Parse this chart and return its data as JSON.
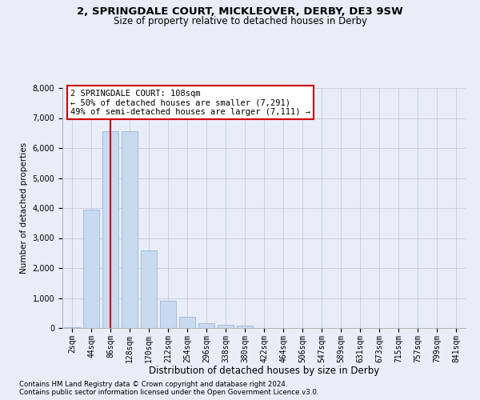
{
  "title_line1": "2, SPRINGDALE COURT, MICKLEOVER, DERBY, DE3 9SW",
  "title_line2": "Size of property relative to detached houses in Derby",
  "xlabel": "Distribution of detached houses by size in Derby",
  "ylabel": "Number of detached properties",
  "footer_line1": "Contains HM Land Registry data © Crown copyright and database right 2024.",
  "footer_line2": "Contains public sector information licensed under the Open Government Licence v3.0.",
  "annotation_line1": "2 SPRINGDALE COURT: 108sqm",
  "annotation_line2": "← 50% of detached houses are smaller (7,291)",
  "annotation_line3": "49% of semi-detached houses are larger (7,111) →",
  "bar_labels": [
    "2sqm",
    "44sqm",
    "86sqm",
    "128sqm",
    "170sqm",
    "212sqm",
    "254sqm",
    "296sqm",
    "338sqm",
    "380sqm",
    "422sqm",
    "464sqm",
    "506sqm",
    "547sqm",
    "589sqm",
    "631sqm",
    "673sqm",
    "715sqm",
    "757sqm",
    "799sqm",
    "841sqm"
  ],
  "bar_values": [
    30,
    3950,
    6550,
    6550,
    2600,
    900,
    380,
    150,
    100,
    80,
    0,
    0,
    0,
    0,
    0,
    0,
    0,
    0,
    0,
    0,
    0
  ],
  "bar_color": "#c9d9f0",
  "bar_edge_color": "#8fafd4",
  "grid_color": "#c8c8d8",
  "background_color": "#e8edf8",
  "redline_x": 2.0,
  "redline_color": "#cc0000",
  "ylim": [
    0,
    8000
  ],
  "yticks": [
    0,
    1000,
    2000,
    3000,
    4000,
    5000,
    6000,
    7000,
    8000
  ],
  "annotation_box_color": "#cc0000",
  "annotation_bg": "white"
}
